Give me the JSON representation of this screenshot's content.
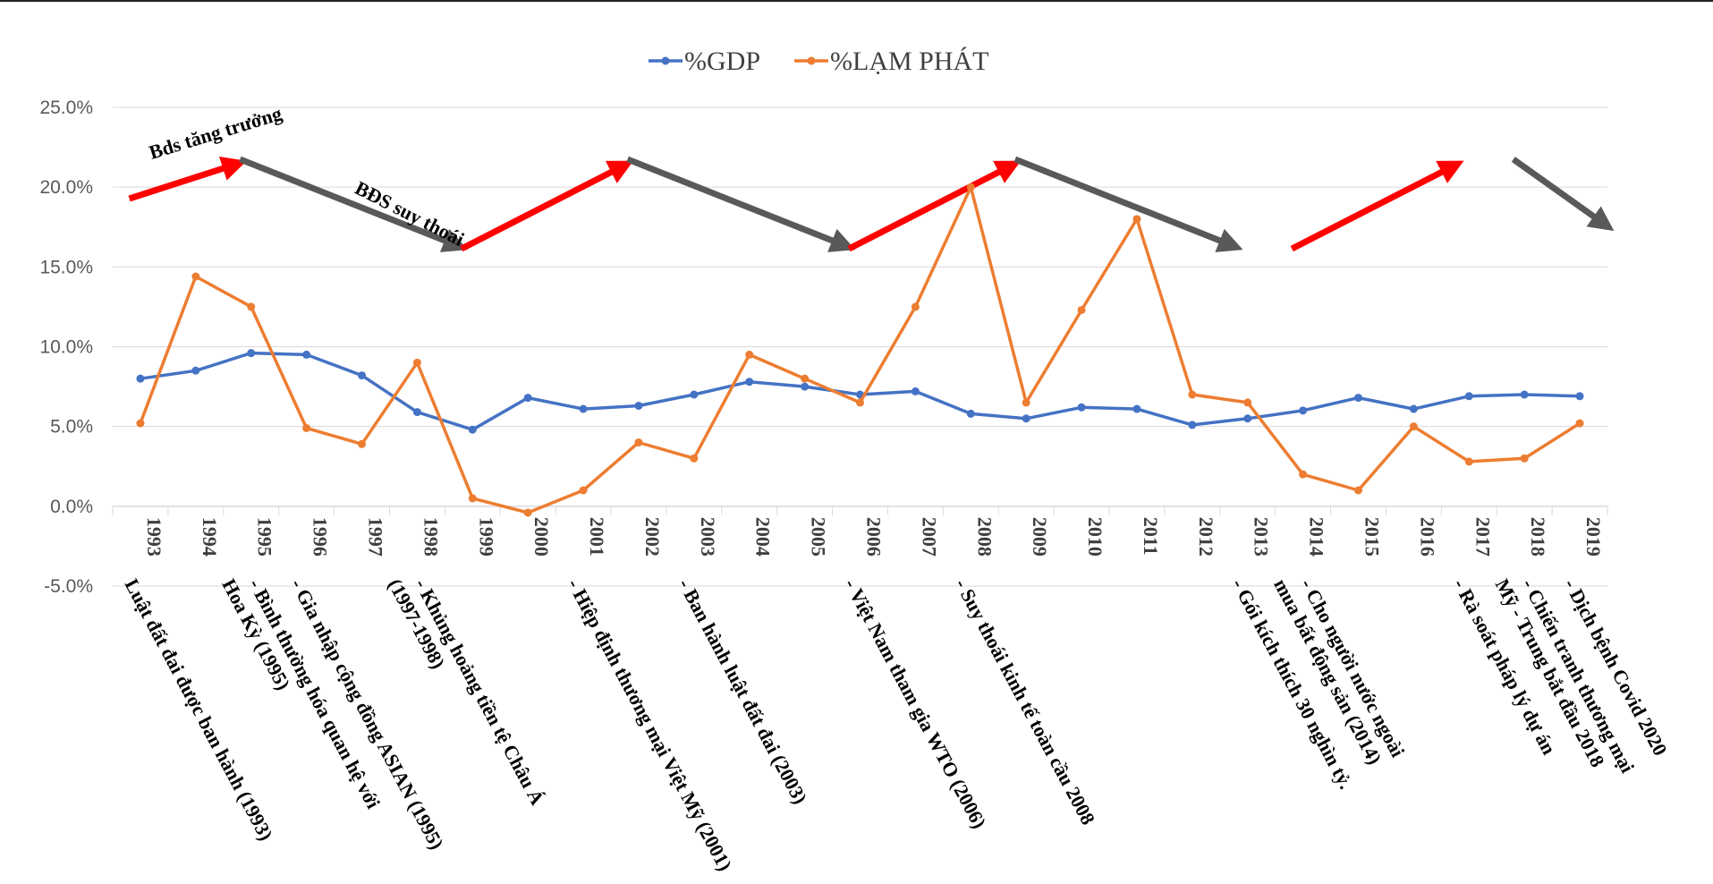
{
  "chart_data": {
    "type": "line",
    "title": "",
    "xlabel": "",
    "ylabel": "",
    "ylim": [
      -0.05,
      0.25
    ],
    "y_ticks": [
      "25.0%",
      "20.0%",
      "15.0%",
      "10.0%",
      "5.0%",
      "0.0%",
      "-5.0%"
    ],
    "y_tick_values": [
      0.25,
      0.2,
      0.15,
      0.1,
      0.05,
      0.0,
      -0.05
    ],
    "categories": [
      "1993",
      "1994",
      "1995",
      "1996",
      "1997",
      "1998",
      "1999",
      "2000",
      "2001",
      "2002",
      "2003",
      "2004",
      "2005",
      "2006",
      "2007",
      "2008",
      "2009",
      "2010",
      "2011",
      "2012",
      "2013",
      "2014",
      "2015",
      "2016",
      "2017",
      "2018",
      "2019"
    ],
    "series": [
      {
        "name": "%GDP",
        "color": "#4472C4",
        "values": [
          0.08,
          0.085,
          0.096,
          0.095,
          0.082,
          0.059,
          0.048,
          0.068,
          0.061,
          0.063,
          0.07,
          0.078,
          0.075,
          0.07,
          0.072,
          0.058,
          0.055,
          0.062,
          0.061,
          0.051,
          0.055,
          0.06,
          0.068,
          0.061,
          0.069,
          0.07,
          0.069
        ]
      },
      {
        "name": "%LẠM PHÁT",
        "color": "#ED7D31",
        "values": [
          0.052,
          0.144,
          0.125,
          0.049,
          0.039,
          0.09,
          0.005,
          -0.004,
          0.01,
          0.04,
          0.03,
          0.095,
          0.08,
          0.065,
          0.125,
          0.2,
          0.065,
          0.123,
          0.18,
          0.07,
          0.065,
          0.02,
          0.01,
          0.05,
          0.028,
          0.03,
          0.052
        ]
      }
    ],
    "legend_position": "top-center",
    "trend_annotations": [
      {
        "type": "up",
        "from_year": 1993,
        "to_year": 1995,
        "label": "Bds tăng trưởng",
        "color": "#FF0000"
      },
      {
        "type": "down",
        "from_year": 1995,
        "to_year": 1999,
        "label": "BĐS suy thoái",
        "color": "#595959"
      },
      {
        "type": "up",
        "from_year": 1999,
        "to_year": 2002,
        "label": "",
        "color": "#FF0000"
      },
      {
        "type": "down",
        "from_year": 2002,
        "to_year": 2006,
        "label": "",
        "color": "#595959"
      },
      {
        "type": "up",
        "from_year": 2006,
        "to_year": 2009,
        "label": "",
        "color": "#FF0000"
      },
      {
        "type": "down",
        "from_year": 2009,
        "to_year": 2013,
        "label": "",
        "color": "#595959"
      },
      {
        "type": "up",
        "from_year": 2014,
        "to_year": 2017,
        "label": "",
        "color": "#FF0000"
      },
      {
        "type": "down",
        "from_year": 2018,
        "to_year": 2019,
        "label": "",
        "color": "#595959"
      }
    ],
    "events": [
      {
        "year": 1993,
        "lines": [
          "Luật đất đai được ban hành (1993)"
        ]
      },
      {
        "year": 1995,
        "lines": [
          "Hoa Kỳ (1995)",
          "- Bình thường hóa quan hệ với"
        ]
      },
      {
        "year": 1996,
        "lines": [
          "- Gia nhập cộng đồng ASIAN (1995)"
        ]
      },
      {
        "year": 1998,
        "lines": [
          "(1997-1998)",
          "- Khủng hoảng tiền tệ Châu Á"
        ]
      },
      {
        "year": 2001,
        "lines": [
          "- Hiệp định thương mại Việt Mỹ (2001)"
        ]
      },
      {
        "year": 2003,
        "lines": [
          "- Ban hành luật đất đai (2003)"
        ]
      },
      {
        "year": 2006,
        "lines": [
          "- Việt Nam tham gia WTO (2006)"
        ]
      },
      {
        "year": 2008,
        "lines": [
          "- Suy thoái kinh tế toàn cầu 2008"
        ]
      },
      {
        "year": 2013,
        "lines": [
          "- Gói kích thích 30 nghìn tỷ."
        ]
      },
      {
        "year": 2014,
        "lines": [
          "mua bất động sản (2014)",
          "- Cho người nước ngoài"
        ]
      },
      {
        "year": 2017,
        "lines": [
          "- Rà soát pháp lý dự án"
        ]
      },
      {
        "year": 2018,
        "lines": [
          "Mỹ - Trung bắt đầu 2018",
          "- Chiến tranh thương mại"
        ]
      },
      {
        "year": 2019,
        "lines": [
          "- Dịch bệnh Covid 2020"
        ]
      }
    ]
  }
}
